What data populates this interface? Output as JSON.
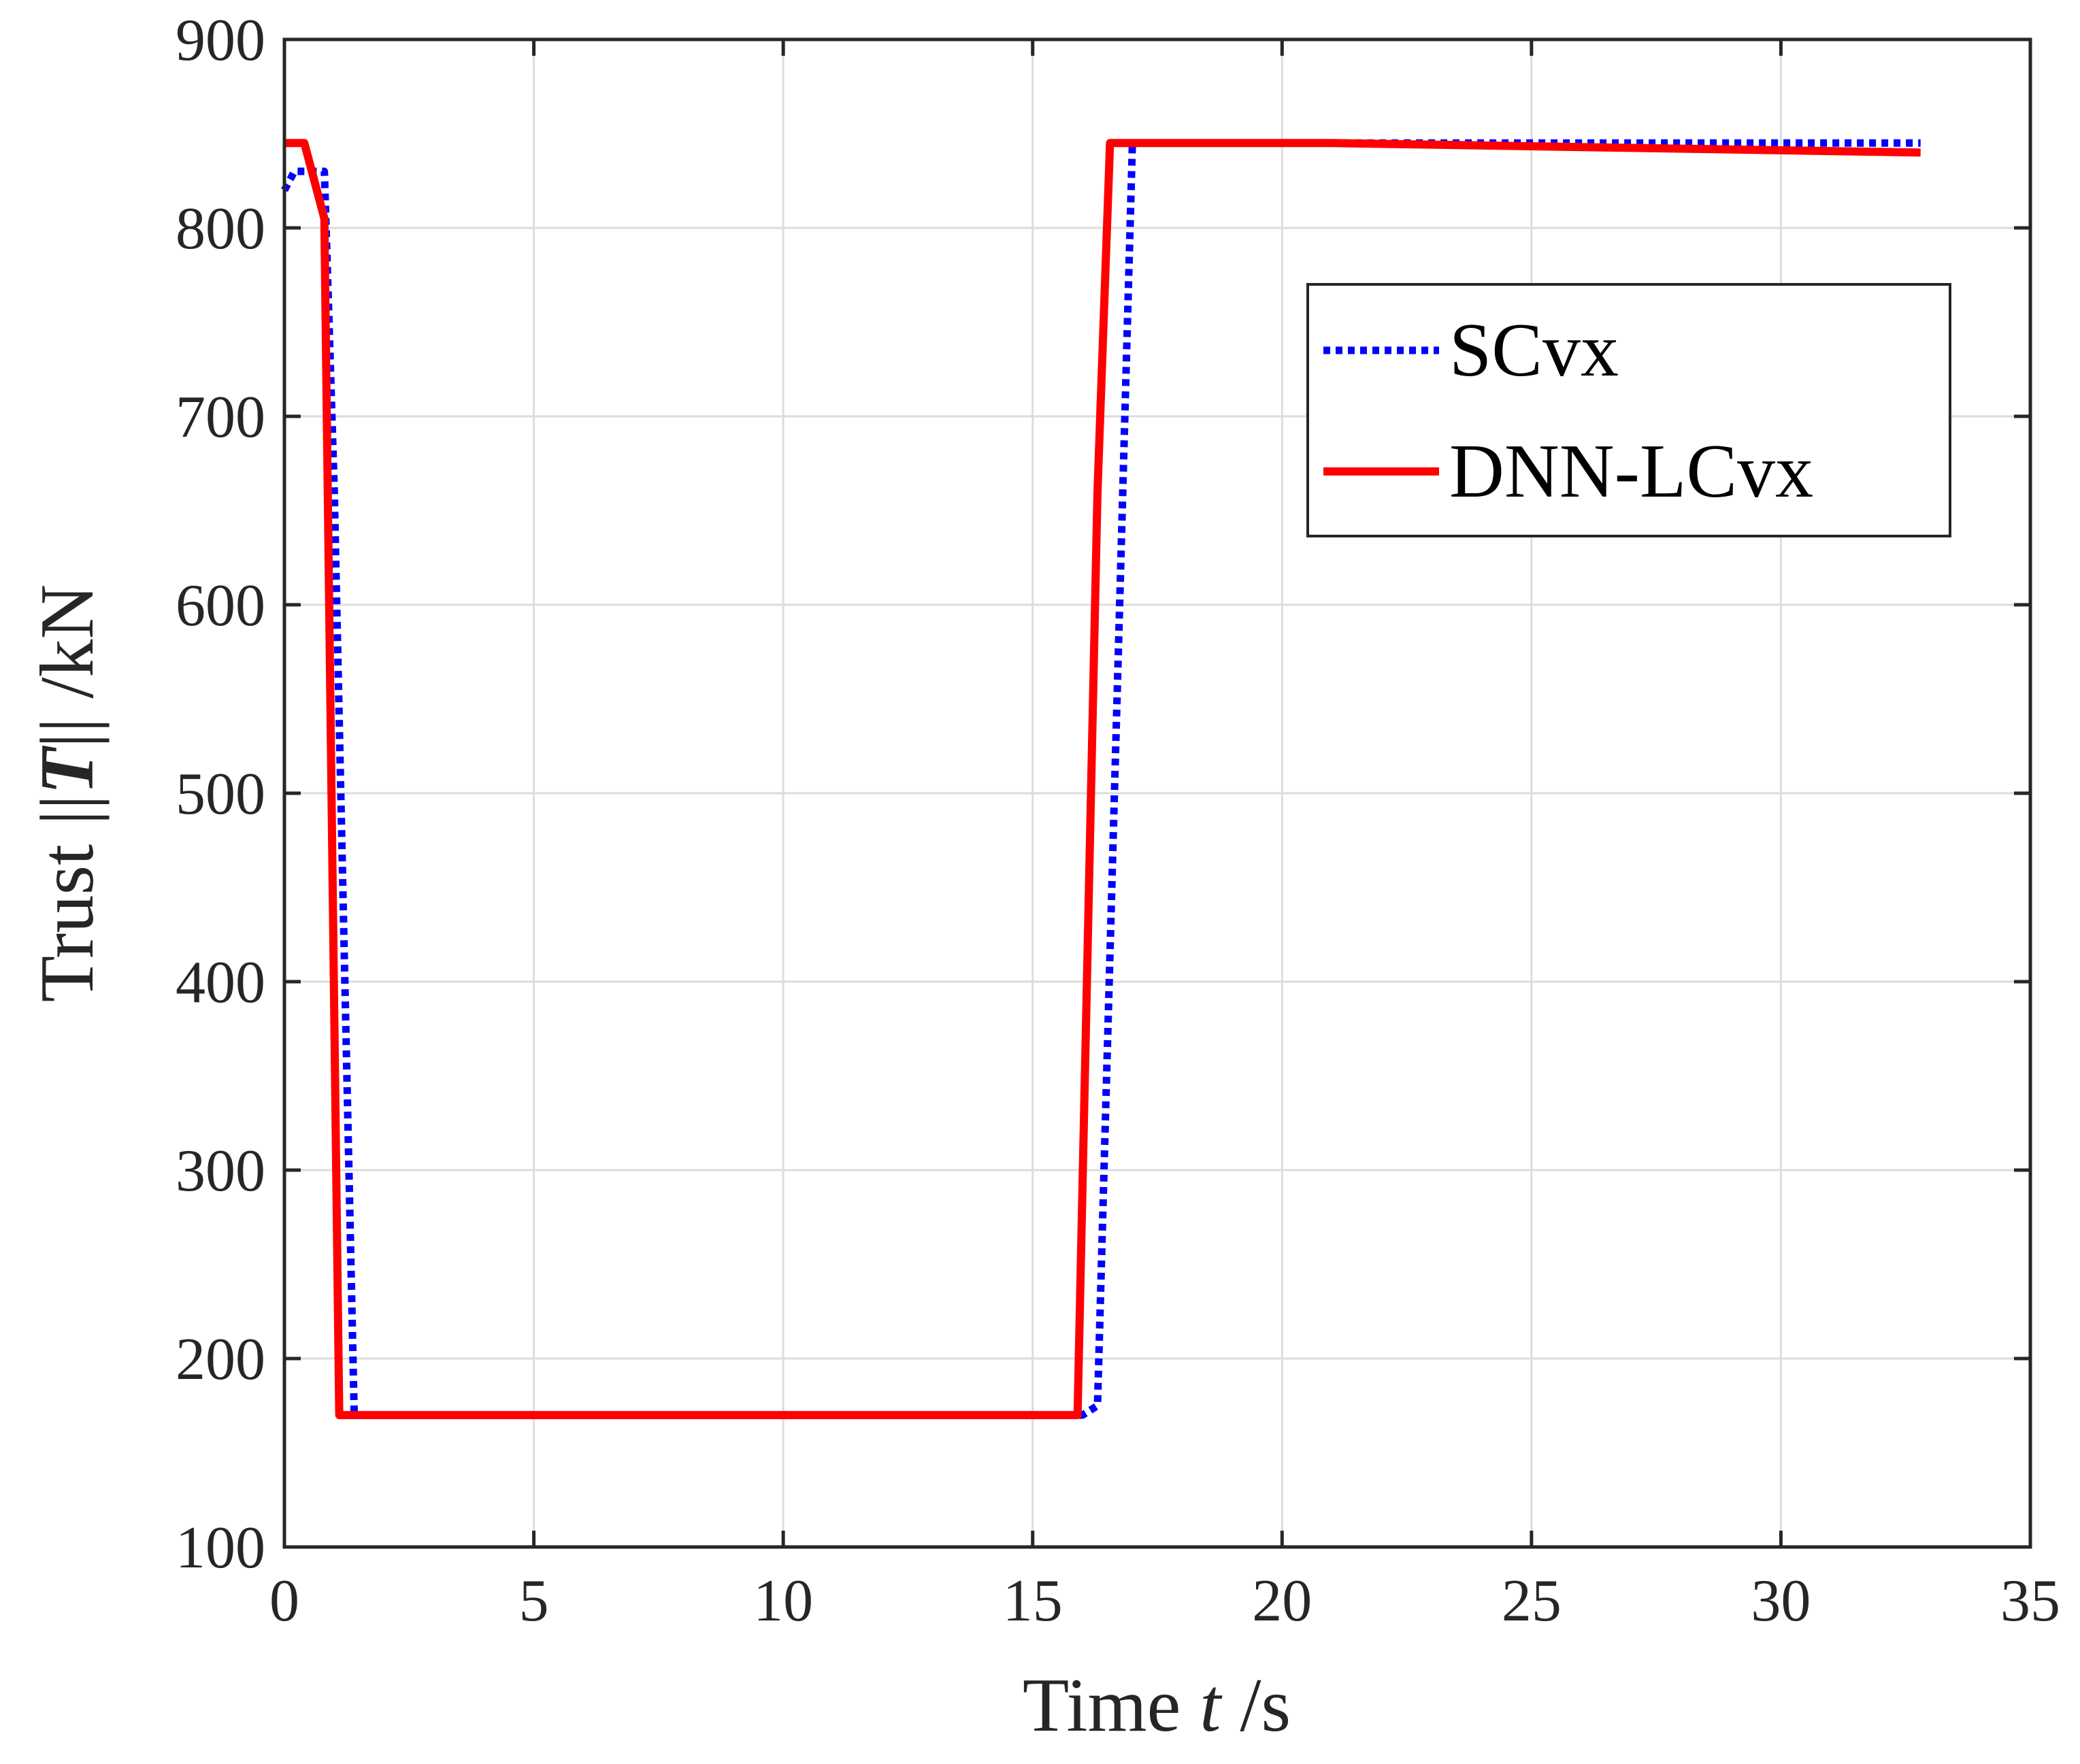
{
  "chart_data": {
    "type": "line",
    "title": "",
    "xlabel_prefix": "Time ",
    "xlabel_var": "t",
    "xlabel_unit": " /s",
    "ylabel_prefix": "Trust ",
    "ylabel_open": "||",
    "ylabel_var": "T",
    "ylabel_close": "||",
    "ylabel_unit": " /kN",
    "xlim": [
      0,
      35
    ],
    "ylim": [
      100,
      900
    ],
    "xticks": [
      0,
      5,
      10,
      15,
      20,
      25,
      30,
      35
    ],
    "yticks": [
      100,
      200,
      300,
      400,
      500,
      600,
      700,
      800,
      900
    ],
    "xtick_labels": [
      "0",
      "5",
      "10",
      "15",
      "20",
      "25",
      "30",
      "35"
    ],
    "ytick_labels": [
      "100",
      "200",
      "300",
      "400",
      "500",
      "600",
      "700",
      "800",
      "900"
    ],
    "grid": true,
    "legend_position": "top-right",
    "series": [
      {
        "name": "SCvx",
        "color": "#0000ff",
        "style": "dotted",
        "x": [
          0,
          0.2,
          0.4,
          0.8,
          1.0,
          1.4,
          16.0,
          16.3,
          17.0,
          32.8
        ],
        "y": [
          820,
          830,
          830,
          830,
          660,
          170,
          170,
          175,
          845,
          845
        ]
      },
      {
        "name": "DNN-LCvx",
        "color": "#ff0000",
        "style": "solid",
        "x": [
          0,
          0.4,
          0.8,
          1.1,
          15.9,
          16.3,
          16.55,
          21,
          32.8
        ],
        "y": [
          845,
          845,
          805,
          170,
          170,
          660,
          845,
          845,
          840
        ]
      }
    ]
  }
}
